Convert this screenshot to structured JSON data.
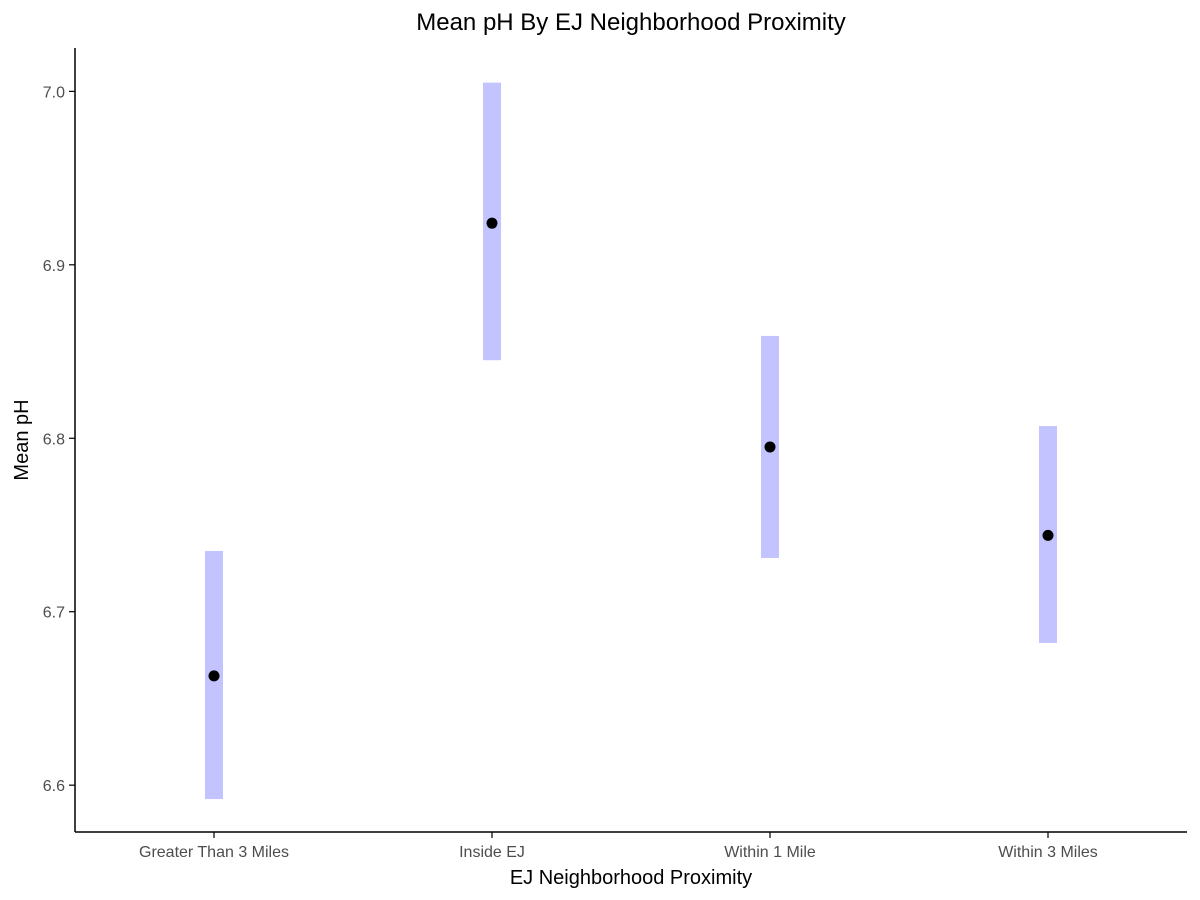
{
  "chart_data": {
    "type": "scatter",
    "title": "Mean pH By EJ Neighborhood Proximity",
    "xlabel": "EJ Neighborhood Proximity",
    "ylabel": "Mean pH",
    "categories": [
      "Greater Than 3 Miles",
      "Inside EJ",
      "Within 1 Mile",
      "Within 3 Miles"
    ],
    "series": [
      {
        "values": [
          6.663,
          6.924,
          6.795,
          6.744
        ],
        "lower": [
          6.592,
          6.845,
          6.731,
          6.682
        ],
        "upper": [
          6.735,
          7.005,
          6.859,
          6.807
        ]
      }
    ],
    "ylim": [
      6.573,
      7.025
    ],
    "yticks": [
      6.6,
      6.7,
      6.8,
      6.9,
      7.0
    ],
    "ytick_labels": [
      "6.6",
      "6.7",
      "6.8",
      "6.9",
      "7.0"
    ],
    "grid": false,
    "colors": {
      "interval": "#c3c3ff",
      "point": "#000000",
      "axis": "#000000"
    }
  }
}
